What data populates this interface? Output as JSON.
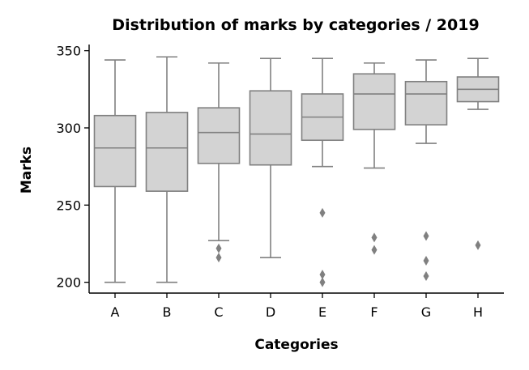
{
  "chart_data": {
    "type": "box",
    "title": "Distribution of marks by categories / 2019",
    "xlabel": "Categories",
    "ylabel": "Marks",
    "ylim": [
      193,
      354
    ],
    "yticks": [
      200,
      250,
      300,
      350
    ],
    "categories": [
      "A",
      "B",
      "C",
      "D",
      "E",
      "F",
      "G",
      "H"
    ],
    "boxes": [
      {
        "category": "A",
        "whisker_low": 200,
        "q1": 262,
        "median": 287,
        "q3": 308,
        "whisker_high": 344,
        "outliers": []
      },
      {
        "category": "B",
        "whisker_low": 200,
        "q1": 259,
        "median": 287,
        "q3": 310,
        "whisker_high": 346,
        "outliers": []
      },
      {
        "category": "C",
        "whisker_low": 227,
        "q1": 277,
        "median": 297,
        "q3": 313,
        "whisker_high": 342,
        "outliers": [
          222,
          216
        ]
      },
      {
        "category": "D",
        "whisker_low": 216,
        "q1": 276,
        "median": 296,
        "q3": 324,
        "whisker_high": 345,
        "outliers": []
      },
      {
        "category": "E",
        "whisker_low": 275,
        "q1": 292,
        "median": 307,
        "q3": 322,
        "whisker_high": 345,
        "outliers": [
          245,
          205,
          200
        ]
      },
      {
        "category": "F",
        "whisker_low": 274,
        "q1": 299,
        "median": 322,
        "q3": 335,
        "whisker_high": 342,
        "outliers": [
          229,
          221
        ]
      },
      {
        "category": "G",
        "whisker_low": 290,
        "q1": 302,
        "median": 322,
        "q3": 330,
        "whisker_high": 344,
        "outliers": [
          230,
          214,
          204
        ]
      },
      {
        "category": "H",
        "whisker_low": 312,
        "q1": 317,
        "median": 325,
        "q3": 333,
        "whisker_high": 345,
        "outliers": [
          224
        ]
      }
    ],
    "colors": {
      "box_fill": "#d3d3d3",
      "box_edge": "#808080",
      "axis": "#000000"
    },
    "grid": false,
    "legend": "none"
  }
}
